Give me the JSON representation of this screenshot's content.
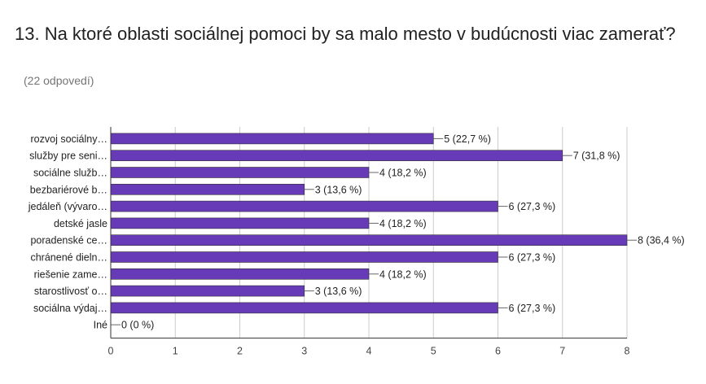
{
  "question": {
    "title": "13. Na ktoré oblasti sociálnej pomoci by sa malo mesto v budúcnosti viac zamerať?",
    "responses": "(22 odpovedí)"
  },
  "colors": {
    "bar": "#673ab7",
    "axis": "#333333",
    "grid": "#cccccc",
    "leader": "#666666"
  },
  "chart_data": {
    "type": "bar",
    "orientation": "horizontal",
    "categories": [
      "rozvoj sociálny…",
      "služby pre seni…",
      "sociálne služb…",
      "bezbariérové b…",
      "jedáleň (vývaro…",
      "detské jasle",
      "poradenské ce…",
      "chránené dieln…",
      "riešenie zame…",
      "starostlivosť o…",
      "sociálna výdaj…",
      "Iné"
    ],
    "values": [
      5,
      7,
      4,
      3,
      6,
      4,
      8,
      6,
      4,
      3,
      6,
      0
    ],
    "data_labels": [
      "5 (22,7 %)",
      "7 (31,8 %)",
      "4 (18,2 %)",
      "3 (13,6 %)",
      "6 (27,3 %)",
      "4 (18,2 %)",
      "8 (36,4 %)",
      "6 (27,3 %)",
      "4 (18,2 %)",
      "3 (13,6 %)",
      "6 (27,3 %)",
      "0 (0 %)"
    ],
    "x_ticks": [
      "0",
      "1",
      "2",
      "3",
      "4",
      "5",
      "6",
      "7",
      "8"
    ],
    "xlim": [
      0,
      8
    ],
    "grid": true,
    "legend": "none"
  }
}
